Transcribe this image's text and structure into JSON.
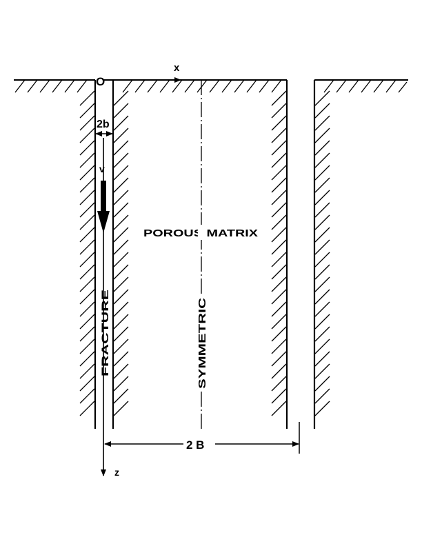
{
  "labels": {
    "origin": "O",
    "x_axis": "x",
    "z_axis": "z",
    "fracture_width": "2b",
    "velocity": "v",
    "porous_matrix": "POROUS MATRIX",
    "fracture": "FRACTURE",
    "symmetric": "SYMMETRIC",
    "spacing": "2 B"
  },
  "colors": {
    "ink": "#000000",
    "background": "#ffffff"
  }
}
